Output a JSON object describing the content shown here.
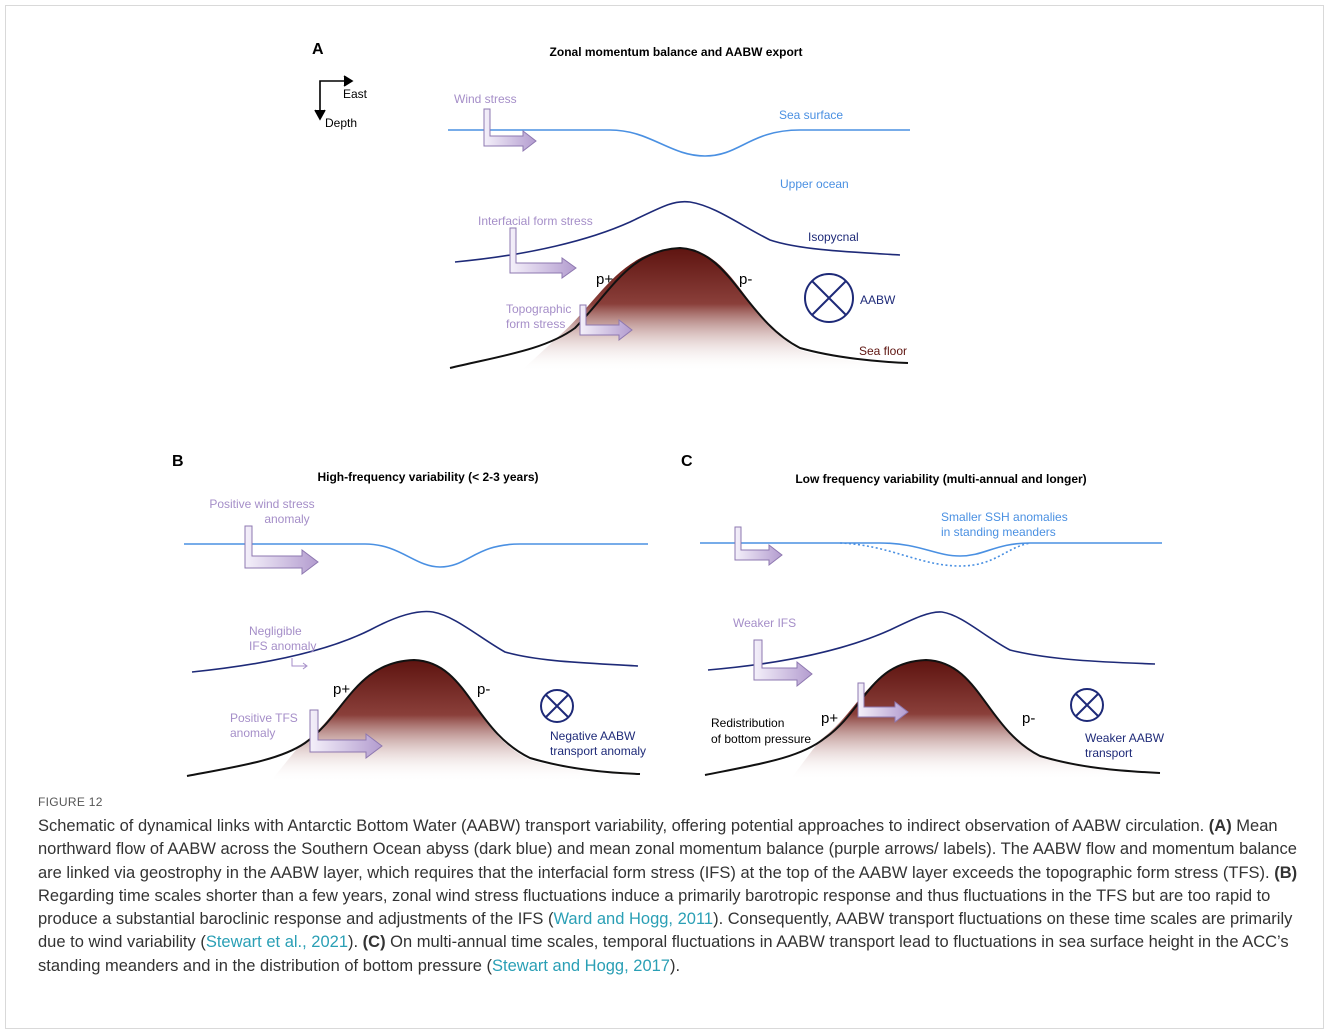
{
  "figure": {
    "panel_a": {
      "letter": "A",
      "title": "Zonal momentum balance and AABW export",
      "compass_east": "East",
      "compass_depth": "Depth",
      "wind_stress": "Wind stress",
      "sea_surface": "Sea surface",
      "upper_ocean": "Upper ocean",
      "interfacial_form_stress": "Interfacial form stress",
      "isopycnal": "Isopycnal",
      "p_plus": "p+",
      "p_minus": "p-",
      "topographic_1": "Topographic",
      "topographic_2": "form stress",
      "aabw": "AABW",
      "sea_floor": "Sea floor"
    },
    "panel_b": {
      "letter": "B",
      "title": "High-frequency variability (< 2-3 years)",
      "wind_1": "Positive wind stress",
      "wind_2": "anomaly",
      "ifs_1": "Negligible",
      "ifs_2": "IFS anomaly",
      "p_plus": "p+",
      "p_minus": "p-",
      "tfs_1": "Positive TFS",
      "tfs_2": "anomaly",
      "aabw_1": "Negative AABW",
      "aabw_2": "transport anomaly"
    },
    "panel_c": {
      "letter": "C",
      "title": "Low frequency variability (multi-annual and longer)",
      "ssh_1": "Smaller SSH anomalies",
      "ssh_2": "in standing meanders",
      "ifs": "Weaker IFS",
      "p_plus": "p+",
      "p_minus": "p-",
      "redis_1": "Redistribution",
      "redis_2": "of bottom pressure",
      "aabw_1": "Weaker AABW",
      "aabw_2": "transport"
    },
    "colors": {
      "sea_surface": "#4a90e2",
      "isopycnal": "#1e2a78",
      "stress_arrow": "#b39ccf",
      "label_purple": "#a58ec8",
      "topography_top": "#5e1410",
      "sea_floor": "#111111"
    }
  },
  "caption": {
    "label": "FIGURE 12",
    "intro": "Schematic of dynamical links with Antarctic Bottom Water (AABW) transport variability, offering potential approaches to indirect observation of AABW circulation. ",
    "a_tag": "(A)",
    "a_text": " Mean northward flow of AABW across the Southern Ocean abyss (dark blue) and mean zonal momentum balance (purple arrows/ labels). The AABW flow and momentum balance are linked via geostrophy in the AABW layer, which requires that the interfacial form stress (IFS) at the top of the AABW layer exceeds the topographic form stress (TFS). ",
    "b_tag": "(B)",
    "b_text": " Regarding time scales shorter than a few years, zonal wind stress fluctuations induce a primarily barotropic response and thus fluctuations in the TFS but are too rapid to produce a substantial baroclinic response and adjustments of the IFS (",
    "ref1": "Ward and Hogg, 2011",
    "b_text2": "). Consequently, AABW transport fluctuations on these time scales are primarily due to wind variability (",
    "ref2": "Stewart et al., 2021",
    "b_text3": "). ",
    "c_tag": "(C)",
    "c_text": " On multi-annual time scales, temporal fluctuations in AABW transport lead to fluctuations in sea surface height in the ACC’s standing meanders and in the distribution of bottom pressure (",
    "ref3": "Stewart and Hogg, 2017",
    "c_text2": ")."
  }
}
